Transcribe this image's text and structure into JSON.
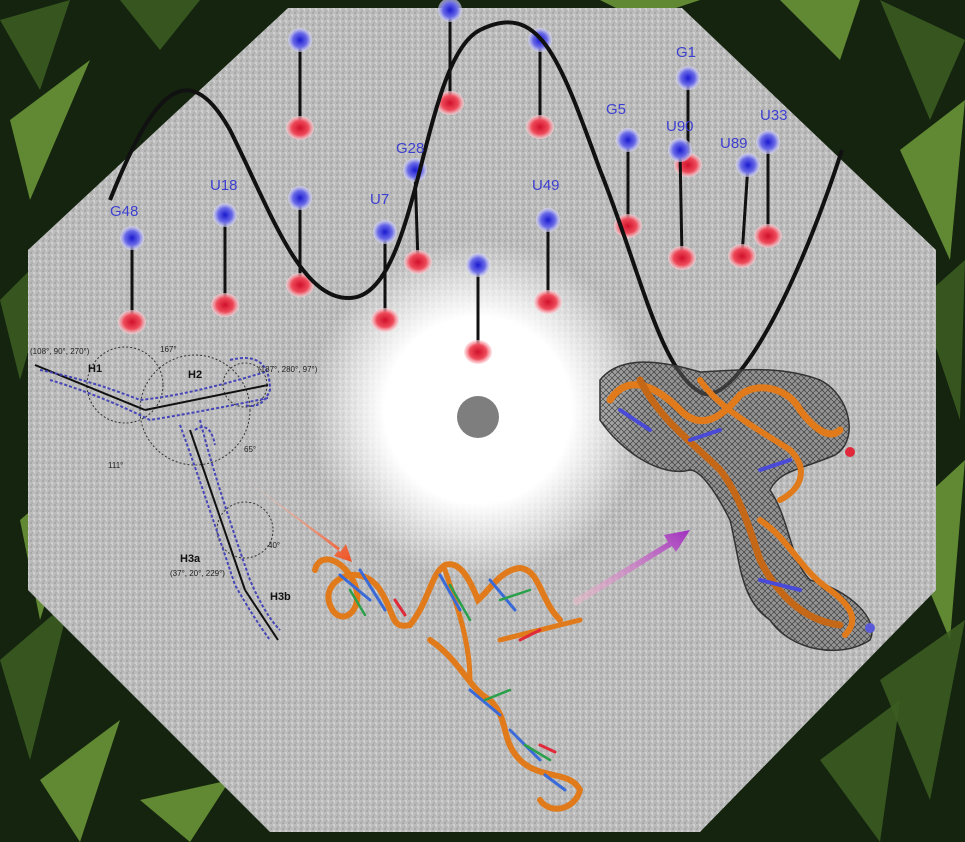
{
  "residues": [
    {
      "label": "G48"
    },
    {
      "label": "U18"
    },
    {
      "label": "U7"
    },
    {
      "label": "G28"
    },
    {
      "label": "U49"
    },
    {
      "label": "G5"
    },
    {
      "label": "G1"
    },
    {
      "label": "U90"
    },
    {
      "label": "U89"
    },
    {
      "label": "U33"
    }
  ],
  "diagram": {
    "helix_labels": [
      "H1",
      "H2",
      "H3a",
      "H3b"
    ],
    "angle_labels": [
      "167°",
      "111°",
      "65°",
      "40°"
    ],
    "coord_labels": [
      "(108°, 90°, 270°)",
      "(187°, 280°, 97°)",
      "(37°, 20°, 229°)"
    ]
  },
  "colors": {
    "foliage_dark": "#14240f",
    "foliage_light": "#6e9a3a",
    "disk_gray": "#b9b9b9",
    "peak_blue": "#3a3ad8",
    "peak_red": "#e0283a",
    "curve": "#111111",
    "rna_backbone": "#e07a1a",
    "envelope": "#555555"
  }
}
